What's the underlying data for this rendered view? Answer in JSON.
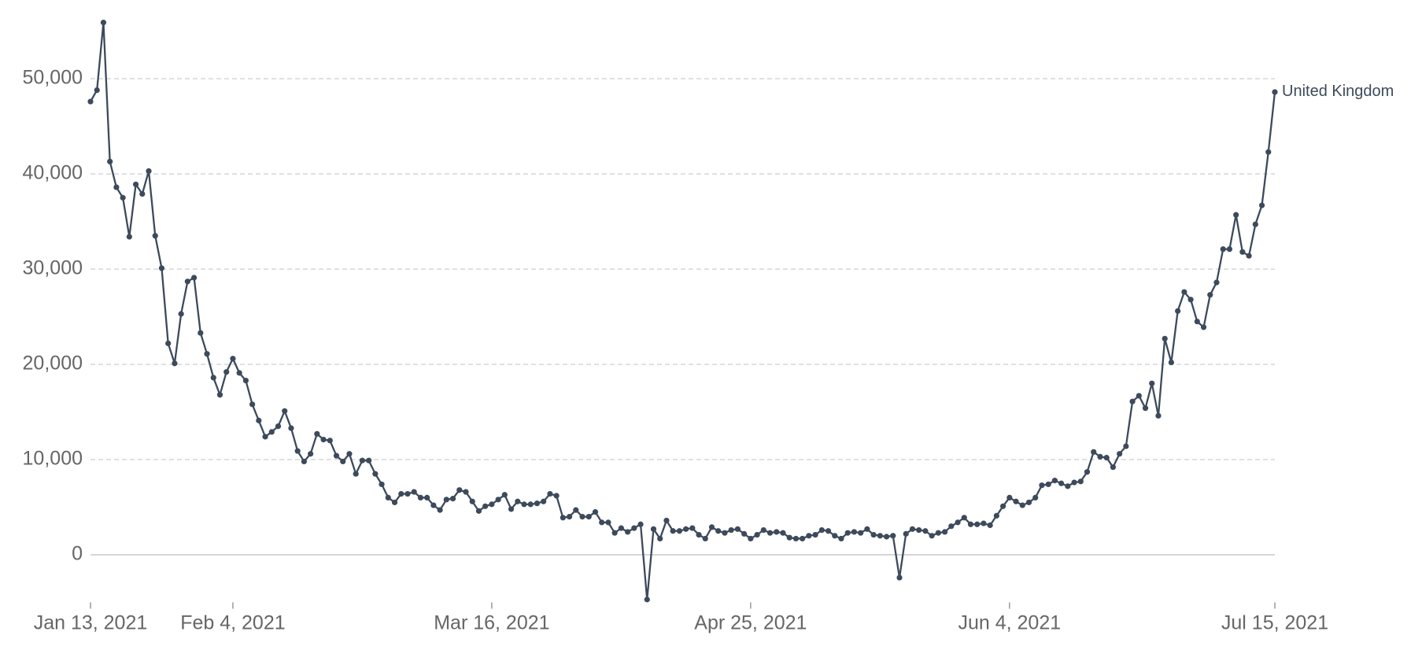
{
  "chart_data": {
    "type": "line",
    "x": [
      "2021-01-13",
      "2021-01-14",
      "2021-01-15",
      "2021-01-16",
      "2021-01-17",
      "2021-01-18",
      "2021-01-19",
      "2021-01-20",
      "2021-01-21",
      "2021-01-22",
      "2021-01-23",
      "2021-01-24",
      "2021-01-25",
      "2021-01-26",
      "2021-01-27",
      "2021-01-28",
      "2021-01-29",
      "2021-01-30",
      "2021-01-31",
      "2021-02-01",
      "2021-02-02",
      "2021-02-03",
      "2021-02-04",
      "2021-02-05",
      "2021-02-06",
      "2021-02-07",
      "2021-02-08",
      "2021-02-09",
      "2021-02-10",
      "2021-02-11",
      "2021-02-12",
      "2021-02-13",
      "2021-02-14",
      "2021-02-15",
      "2021-02-16",
      "2021-02-17",
      "2021-02-18",
      "2021-02-19",
      "2021-02-20",
      "2021-02-21",
      "2021-02-22",
      "2021-02-23",
      "2021-02-24",
      "2021-02-25",
      "2021-02-26",
      "2021-02-27",
      "2021-02-28",
      "2021-03-01",
      "2021-03-02",
      "2021-03-03",
      "2021-03-04",
      "2021-03-05",
      "2021-03-06",
      "2021-03-07",
      "2021-03-08",
      "2021-03-09",
      "2021-03-10",
      "2021-03-11",
      "2021-03-12",
      "2021-03-13",
      "2021-03-14",
      "2021-03-15",
      "2021-03-16",
      "2021-03-17",
      "2021-03-18",
      "2021-03-19",
      "2021-03-20",
      "2021-03-21",
      "2021-03-22",
      "2021-03-23",
      "2021-03-24",
      "2021-03-25",
      "2021-03-26",
      "2021-03-27",
      "2021-03-28",
      "2021-03-29",
      "2021-03-30",
      "2021-03-31",
      "2021-04-01",
      "2021-04-02",
      "2021-04-03",
      "2021-04-04",
      "2021-04-05",
      "2021-04-06",
      "2021-04-07",
      "2021-04-08",
      "2021-04-09",
      "2021-04-10",
      "2021-04-11",
      "2021-04-12",
      "2021-04-13",
      "2021-04-14",
      "2021-04-15",
      "2021-04-16",
      "2021-04-17",
      "2021-04-18",
      "2021-04-19",
      "2021-04-20",
      "2021-04-21",
      "2021-04-22",
      "2021-04-23",
      "2021-04-24",
      "2021-04-25",
      "2021-04-26",
      "2021-04-27",
      "2021-04-28",
      "2021-04-29",
      "2021-04-30",
      "2021-05-01",
      "2021-05-02",
      "2021-05-03",
      "2021-05-04",
      "2021-05-05",
      "2021-05-06",
      "2021-05-07",
      "2021-05-08",
      "2021-05-09",
      "2021-05-10",
      "2021-05-11",
      "2021-05-12",
      "2021-05-13",
      "2021-05-14",
      "2021-05-15",
      "2021-05-16",
      "2021-05-17",
      "2021-05-18",
      "2021-05-19",
      "2021-05-20",
      "2021-05-21",
      "2021-05-22",
      "2021-05-23",
      "2021-05-24",
      "2021-05-25",
      "2021-05-26",
      "2021-05-27",
      "2021-05-28",
      "2021-05-29",
      "2021-05-30",
      "2021-05-31",
      "2021-06-01",
      "2021-06-02",
      "2021-06-03",
      "2021-06-04",
      "2021-06-05",
      "2021-06-06",
      "2021-06-07",
      "2021-06-08",
      "2021-06-09",
      "2021-06-10",
      "2021-06-11",
      "2021-06-12",
      "2021-06-13",
      "2021-06-14",
      "2021-06-15",
      "2021-06-16",
      "2021-06-17",
      "2021-06-18",
      "2021-06-19",
      "2021-06-20",
      "2021-06-21",
      "2021-06-22",
      "2021-06-23",
      "2021-06-24",
      "2021-06-25",
      "2021-06-26",
      "2021-06-27",
      "2021-06-28",
      "2021-06-29",
      "2021-06-30",
      "2021-07-01",
      "2021-07-02",
      "2021-07-03",
      "2021-07-04",
      "2021-07-05",
      "2021-07-06",
      "2021-07-07",
      "2021-07-08",
      "2021-07-09",
      "2021-07-10",
      "2021-07-11",
      "2021-07-12",
      "2021-07-13",
      "2021-07-14",
      "2021-07-15"
    ],
    "series": [
      {
        "name": "United Kingdom",
        "color": "#3d4a5c",
        "values": [
          47600,
          48800,
          55900,
          41300,
          38600,
          37500,
          33400,
          38900,
          37900,
          40300,
          33500,
          30100,
          22200,
          20100,
          25300,
          28700,
          29100,
          23300,
          21100,
          18600,
          16800,
          19200,
          20600,
          19100,
          18300,
          15800,
          14100,
          12400,
          12900,
          13500,
          15100,
          13300,
          10900,
          9800,
          10600,
          12700,
          12100,
          12000,
          10400,
          9800,
          10600,
          8500,
          9900,
          9900,
          8500,
          7400,
          6000,
          5500,
          6400,
          6400,
          6600,
          6000,
          6000,
          5200,
          4700,
          5800,
          5900,
          6800,
          6600,
          5600,
          4600,
          5100,
          5300,
          5800,
          6300,
          4800,
          5600,
          5300,
          5300,
          5400,
          5600,
          6400,
          6200,
          3900,
          4000,
          4700,
          4000,
          4000,
          4500,
          3400,
          3400,
          2300,
          2800,
          2400,
          2800,
          3200,
          -4700,
          2700,
          1700,
          3600,
          2500,
          2500,
          2700,
          2800,
          2100,
          1700,
          2900,
          2500,
          2300,
          2600,
          2700,
          2200,
          1700,
          2100,
          2600,
          2300,
          2400,
          2300,
          1800,
          1700,
          1700,
          2000,
          2100,
          2600,
          2500,
          2000,
          1700,
          2300,
          2400,
          2300,
          2700,
          2100,
          2000,
          1900,
          2000,
          -2400,
          2200,
          2700,
          2600,
          2500,
          2000,
          2300,
          2400,
          3000,
          3400,
          3900,
          3200,
          3200,
          3300,
          3100,
          4100,
          5100,
          6000,
          5600,
          5200,
          5500,
          6000,
          7300,
          7400,
          7800,
          7500,
          7200,
          7600,
          7700,
          8700,
          10800,
          10300,
          10200,
          9200,
          10600,
          11400,
          16100,
          16700,
          15400,
          18000,
          14600,
          22700,
          20200,
          25600,
          27600,
          26800,
          24500,
          23900,
          27300,
          28600,
          32100,
          32100,
          35700,
          31800,
          31400,
          34700,
          36700,
          42300,
          48600
        ]
      }
    ],
    "xlim": [
      "2021-01-13",
      "2021-07-15"
    ],
    "xticks": [
      {
        "value": "2021-01-13",
        "label": "Jan 13, 2021"
      },
      {
        "value": "2021-02-04",
        "label": "Feb 4, 2021"
      },
      {
        "value": "2021-03-16",
        "label": "Mar 16, 2021"
      },
      {
        "value": "2021-04-25",
        "label": "Apr 25, 2021"
      },
      {
        "value": "2021-06-04",
        "label": "Jun 4, 2021"
      },
      {
        "value": "2021-07-15",
        "label": "Jul 15, 2021"
      }
    ],
    "ylim": [
      -5000,
      56000
    ],
    "yticks": [
      0,
      {
        "value": 10000,
        "label": "10,000"
      },
      {
        "value": 20000,
        "label": "20,000"
      },
      {
        "value": 30000,
        "label": "30,000"
      },
      {
        "value": 40000,
        "label": "40,000"
      },
      {
        "value": 50000,
        "label": "50,000"
      }
    ],
    "grid": true
  }
}
